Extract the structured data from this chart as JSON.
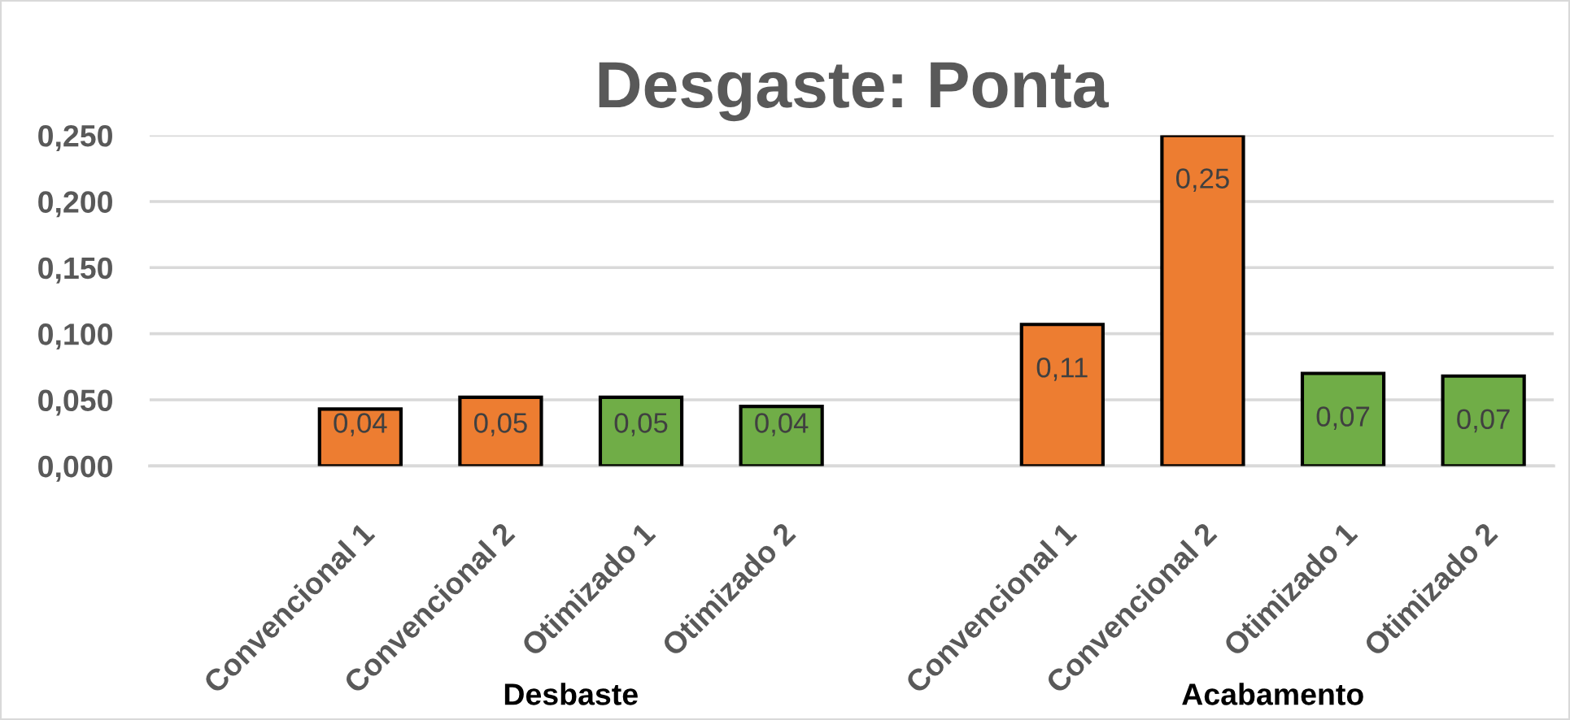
{
  "chart_data": {
    "type": "bar",
    "title": "Desgaste: Ponta",
    "categories": [
      null,
      "Convencional 1",
      "Convencional 2",
      "Otimizado 1",
      "Otimizado 2",
      null,
      "Convencional 1",
      "Convencional 2",
      "Otimizado 1",
      "Otimizado 2"
    ],
    "values": [
      null,
      0.043,
      0.052,
      0.052,
      0.045,
      null,
      0.107,
      0.25,
      0.07,
      0.068
    ],
    "colors": [
      null,
      "#ed7d31",
      "#ed7d31",
      "#70ad47",
      "#70ad47",
      null,
      "#ed7d31",
      "#ed7d31",
      "#70ad47",
      "#70ad47"
    ],
    "value_labels": [
      null,
      "0,04",
      "0,05",
      "0,05",
      "0,04",
      null,
      "0,11",
      "0,25",
      "0,07",
      "0,07"
    ],
    "annotations": [
      "Desbaste",
      "Acabamento"
    ],
    "ylim": [
      0,
      0.25
    ],
    "yticks": [
      {
        "value": 0,
        "label": "0,000"
      },
      {
        "value": 0.05,
        "label": "0,050"
      },
      {
        "value": 0.1,
        "label": "0,100"
      },
      {
        "value": 0.15,
        "label": "0,150"
      },
      {
        "value": 0.2,
        "label": "0,200"
      },
      {
        "value": 0.25,
        "label": "0,250"
      }
    ],
    "grid": "y"
  }
}
